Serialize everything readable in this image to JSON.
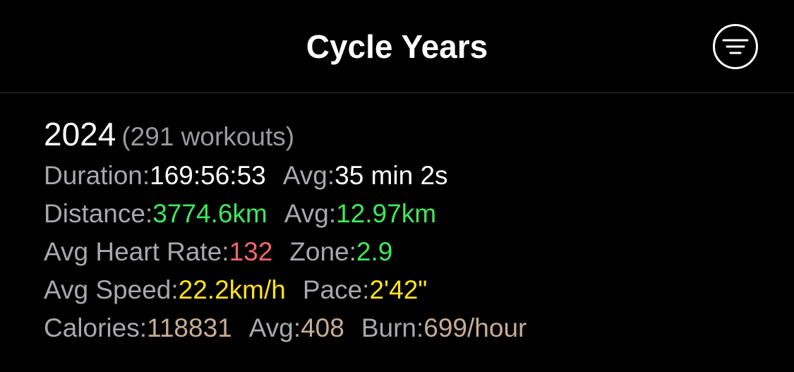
{
  "nav": {
    "title": "Cycle Years",
    "filter_icon": "filter-lines-icon"
  },
  "year": {
    "value": "2024",
    "workouts": "(291 workouts)",
    "duration": {
      "label": "Duration:",
      "value": "169:56:53",
      "avg_label": "Avg:",
      "avg_value": "35 min 2s"
    },
    "distance": {
      "label": "Distance:",
      "value": "3774.6km",
      "avg_label": "Avg:",
      "avg_value": "12.97km"
    },
    "heart_rate": {
      "label": "Avg Heart Rate:",
      "value": "132",
      "zone_label": "Zone:",
      "zone_value": "2.9"
    },
    "speed": {
      "label": "Avg Speed:",
      "value": "22.2km/h",
      "pace_label": "Pace:",
      "pace_value": "2'42\""
    },
    "calories": {
      "label": "Calories:",
      "value": "118831",
      "avg_label": "Avg:",
      "avg_value": "408",
      "burn_label": "Burn:",
      "burn_value": "699/hour"
    }
  },
  "colors": {
    "background": "#000000",
    "label": "#a8a8ad",
    "green": "#3fe85a",
    "red": "#f0686b",
    "yellow": "#ffe21a",
    "tan": "#c7ad95"
  }
}
